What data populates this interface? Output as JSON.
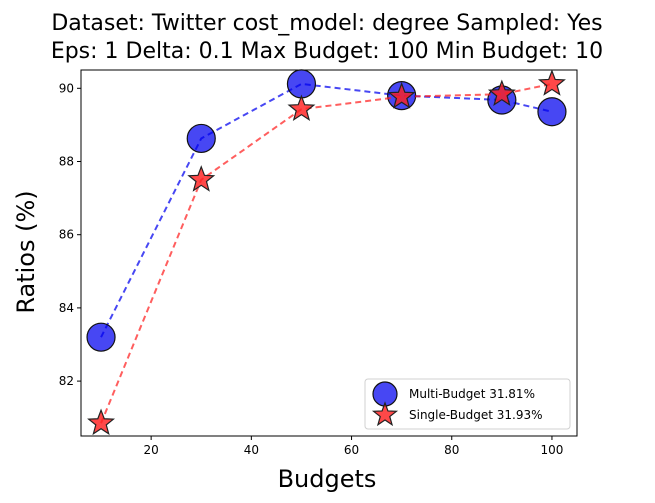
{
  "chart_data": {
    "type": "line",
    "title": "Dataset: Twitter cost_model: degree Sampled: Yes",
    "subtitle": "Eps: 1 Delta: 0.1 Max Budget: 100 Min Budget: 10",
    "xlabel": "Budgets",
    "ylabel": "Ratios (%)",
    "xlim": [
      6,
      105
    ],
    "ylim": [
      80.5,
      90.5
    ],
    "x_ticks": [
      20,
      40,
      60,
      80,
      100
    ],
    "y_ticks": [
      82,
      84,
      86,
      88,
      90
    ],
    "grid": false,
    "legend_position": "bottom-right",
    "x": [
      10,
      30,
      50,
      70,
      90,
      100
    ],
    "series": [
      {
        "name": "Multi-Budget 31.81%",
        "values": [
          83.2,
          88.63,
          90.12,
          89.8,
          89.68,
          89.36
        ],
        "color": "#0000ee",
        "marker": "circle"
      },
      {
        "name": "Single-Budget 31.93%",
        "values": [
          80.85,
          87.5,
          89.43,
          89.77,
          89.84,
          90.12
        ],
        "color": "#ff2020",
        "marker": "star"
      }
    ]
  }
}
